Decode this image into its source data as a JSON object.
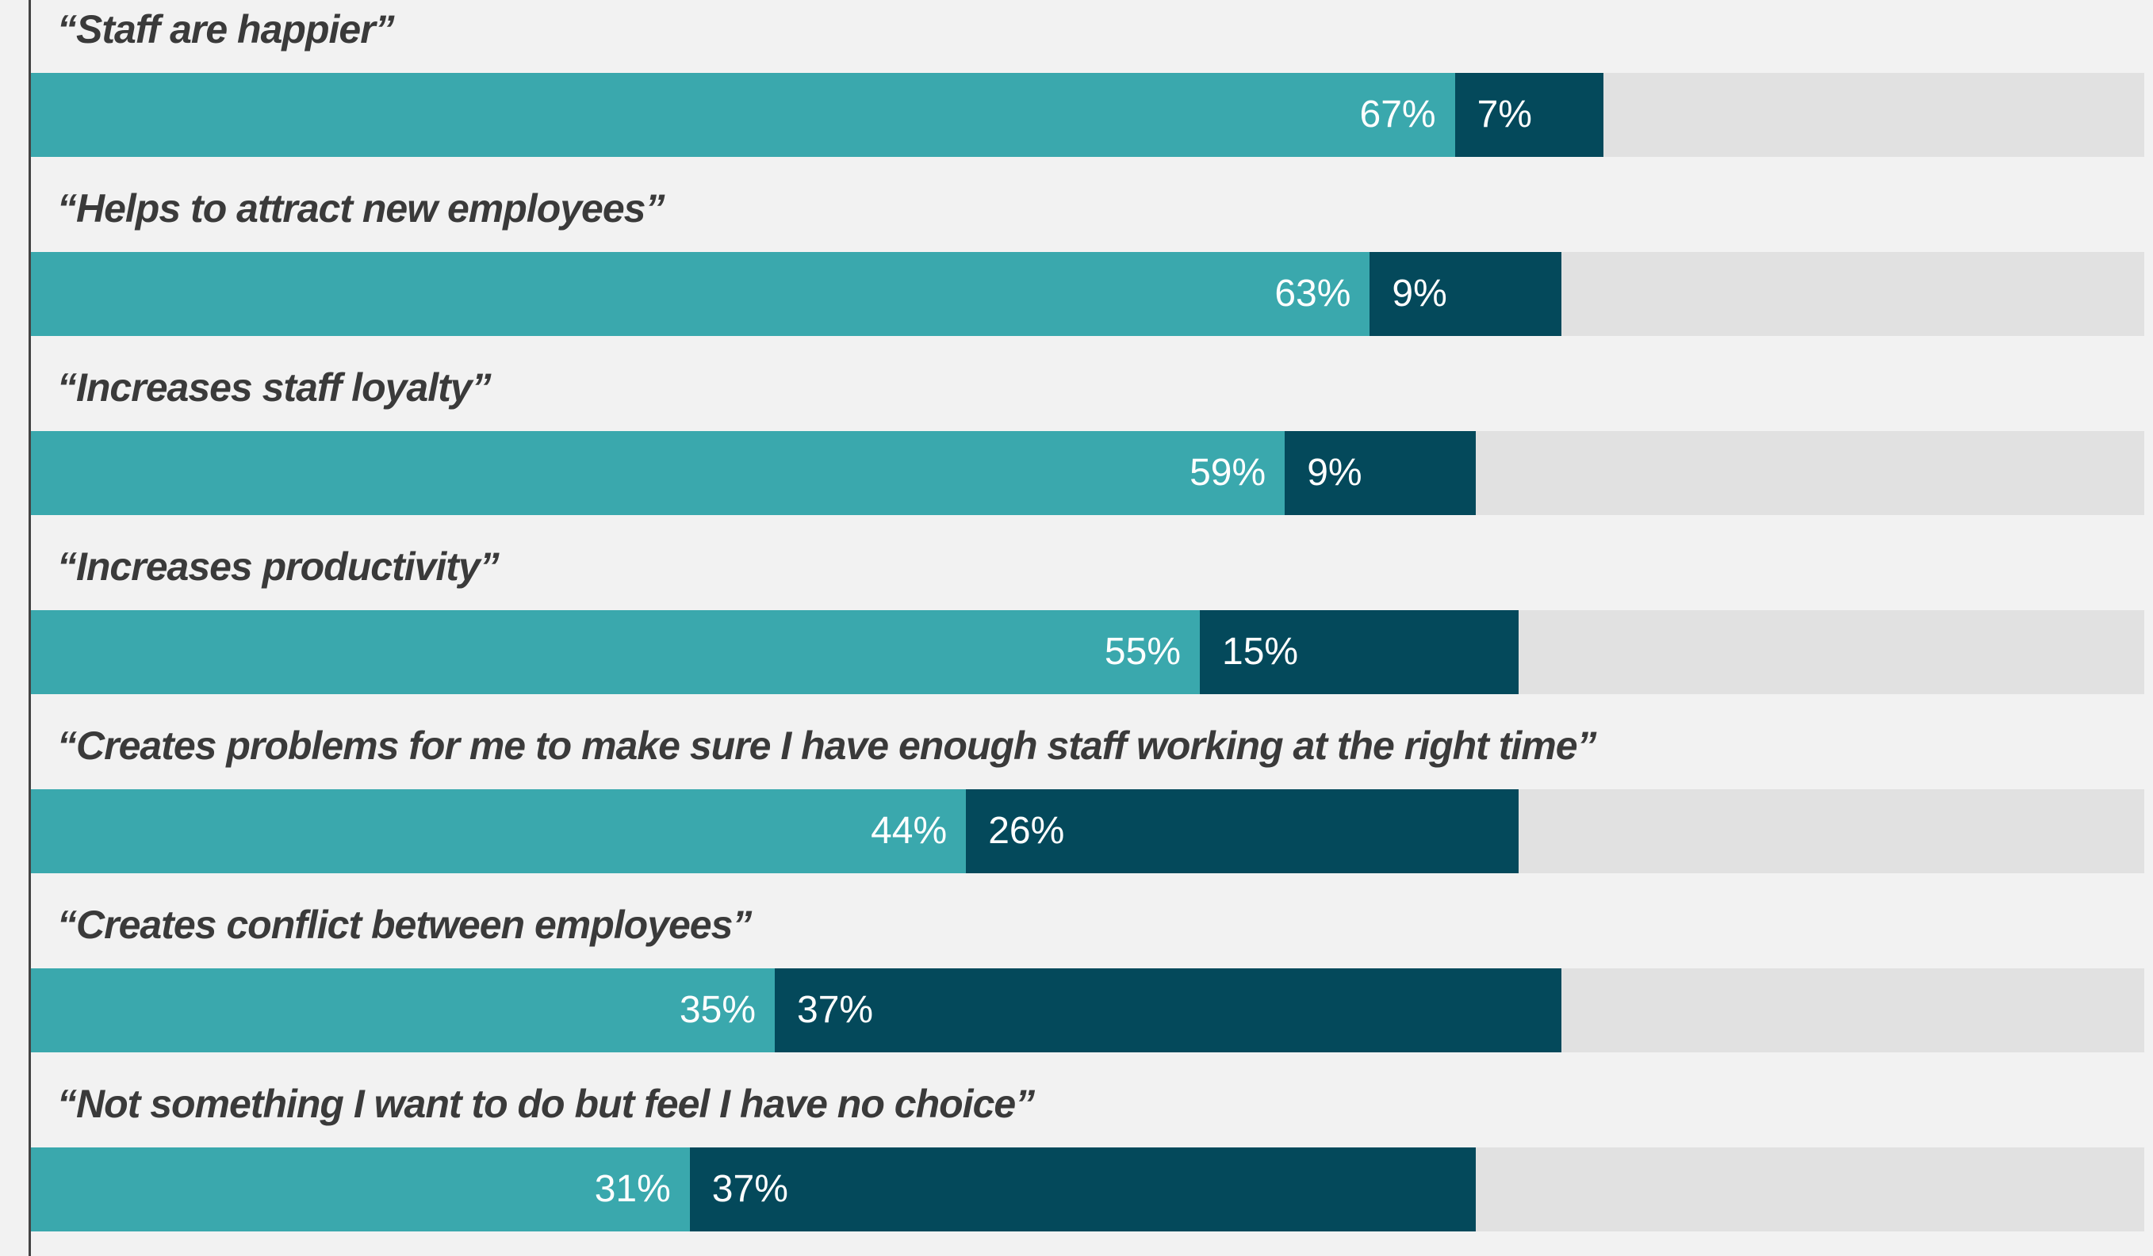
{
  "chart_data": {
    "type": "bar",
    "orientation": "horizontal",
    "stacked": true,
    "xlim": [
      0,
      100
    ],
    "colors": {
      "first": "#3aa8ad",
      "second": "#04495b",
      "track": "#e1e1e1",
      "background": "#f2f2f2",
      "label_text": "#3a3a3a"
    },
    "categories": [
      "“Staff are happier”",
      "“Helps to attract new employees”",
      "“Increases staff loyalty”",
      "“Increases productivity”",
      "“Creates problems for me to make sure I have enough staff working at the right time”",
      "“Creates conflict between employees”",
      "“Not something I want to do but feel I have no choice”"
    ],
    "series": [
      {
        "values": [
          67,
          63,
          59,
          55,
          44,
          35,
          31
        ],
        "labels": [
          "67%",
          "63%",
          "59%",
          "55%",
          "44%",
          "35%",
          "31%"
        ]
      },
      {
        "values": [
          7,
          9,
          9,
          15,
          26,
          37,
          37
        ],
        "labels": [
          "7%",
          "9%",
          "9%",
          "15%",
          "26%",
          "37%",
          "37%"
        ]
      }
    ],
    "grid": false,
    "legend": "none"
  }
}
